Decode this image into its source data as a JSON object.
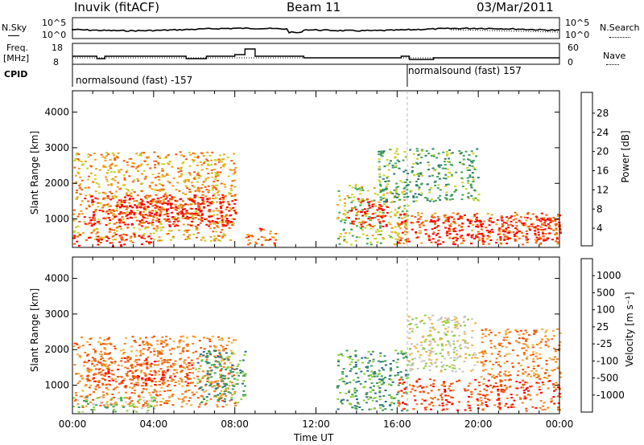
{
  "header": {
    "station": "Inuvik (fitACF)",
    "beam": "Beam 11",
    "date": "03/Mar/2011"
  },
  "panels": {
    "nsky": {
      "left_label": "N.Sky",
      "right_label": "N.Search",
      "left_ticks": [
        "10^5",
        "10^0"
      ],
      "right_ticks": [
        "10^5",
        "10^0"
      ]
    },
    "freq": {
      "left_label_1": "Freq.",
      "left_label_2": "[MHz]",
      "left_ticks": [
        "18",
        "8"
      ],
      "right_label": "Nave",
      "right_ticks": [
        "60",
        "0"
      ]
    },
    "cpid": {
      "label": "CPID",
      "segments": [
        {
          "text": "normalsound (fast) -157",
          "start_hour": 0
        },
        {
          "text": "normalsound (fast) 157",
          "start_hour": 16.5
        }
      ]
    }
  },
  "chart_data": [
    {
      "type": "heatmap",
      "name": "power",
      "xlabel": "",
      "ylabel": "Slant Range [km]",
      "y_ticks": [
        1000,
        2000,
        3000,
        4000
      ],
      "ylim": [
        200,
        4600
      ],
      "xlim_hours": [
        0,
        24
      ],
      "colorbar": {
        "label": "Power [dB]",
        "ticks": [
          "4",
          "8",
          "12",
          "16",
          "20",
          "24",
          "28"
        ],
        "colors": [
          "#0000ff",
          "#2b4fc8",
          "#2e7d6e",
          "#3fa45a",
          "#c8d42a",
          "#f0a020",
          "#f06010",
          "#ff0000"
        ]
      },
      "regions": [
        {
          "t0": 0.0,
          "t1": 8.0,
          "r0": 400,
          "r1": 2900,
          "level": 5
        },
        {
          "t0": 0.5,
          "t1": 8.0,
          "r0": 800,
          "r1": 1700,
          "level": 7
        },
        {
          "t0": 2.0,
          "t1": 6.5,
          "r0": 1000,
          "r1": 1600,
          "level": 7
        },
        {
          "t0": 0.0,
          "t1": 4.0,
          "r0": 250,
          "r1": 600,
          "level": 7
        },
        {
          "t0": 8.5,
          "t1": 10.0,
          "r0": 250,
          "r1": 800,
          "level": 6
        },
        {
          "t0": 13.0,
          "t1": 16.5,
          "r0": 300,
          "r1": 2000,
          "level": 4
        },
        {
          "t0": 13.5,
          "t1": 15.5,
          "r0": 800,
          "r1": 1600,
          "level": 7
        },
        {
          "t0": 16.0,
          "t1": 24.0,
          "r0": 300,
          "r1": 1200,
          "level": 6
        },
        {
          "t0": 17.5,
          "t1": 24.0,
          "r0": 400,
          "r1": 1100,
          "level": 7
        },
        {
          "t0": 15.0,
          "t1": 20.0,
          "r0": 1500,
          "r1": 3000,
          "level": 3
        }
      ]
    },
    {
      "type": "heatmap",
      "name": "velocity",
      "xlabel": "Time UT",
      "ylabel": "Slant Range [km]",
      "y_ticks": [
        1000,
        2000,
        3000,
        4000
      ],
      "ylim": [
        200,
        4600
      ],
      "xlim_hours": [
        0,
        24
      ],
      "x_ticks": [
        "00:00",
        "04:00",
        "08:00",
        "12:00",
        "16:00",
        "20:00",
        "00:00"
      ],
      "colorbar": {
        "label": "Velocity [m s⁻¹]",
        "ticks": [
          "1000",
          "500",
          "100",
          "25",
          "-25",
          "-100",
          "-500",
          "-1000"
        ],
        "colors": [
          "#2040c0",
          "#2e6e8e",
          "#3d9a5a",
          "#8ccf3a",
          "#c8c8c8",
          "#f0b040",
          "#f08020",
          "#f05010",
          "#ff0000"
        ]
      },
      "regions": [
        {
          "t0": 0.0,
          "t1": 8.0,
          "r0": 400,
          "r1": 2400,
          "level": 6
        },
        {
          "t0": 0.5,
          "t1": 6.0,
          "r0": 1000,
          "r1": 1800,
          "level": 7
        },
        {
          "t0": 6.0,
          "t1": 8.5,
          "r0": 500,
          "r1": 2000,
          "level": 2
        },
        {
          "t0": 0.0,
          "t1": 4.0,
          "r0": 250,
          "r1": 700,
          "level": 3
        },
        {
          "t0": 13.0,
          "t1": 16.5,
          "r0": 300,
          "r1": 2000,
          "level": 2
        },
        {
          "t0": 16.0,
          "t1": 24.0,
          "r0": 300,
          "r1": 1200,
          "level": 7
        },
        {
          "t0": 16.5,
          "t1": 20.0,
          "r0": 1400,
          "r1": 3000,
          "level": 4
        },
        {
          "t0": 20.0,
          "t1": 24.0,
          "r0": 1200,
          "r1": 2600,
          "level": 6
        }
      ]
    }
  ]
}
